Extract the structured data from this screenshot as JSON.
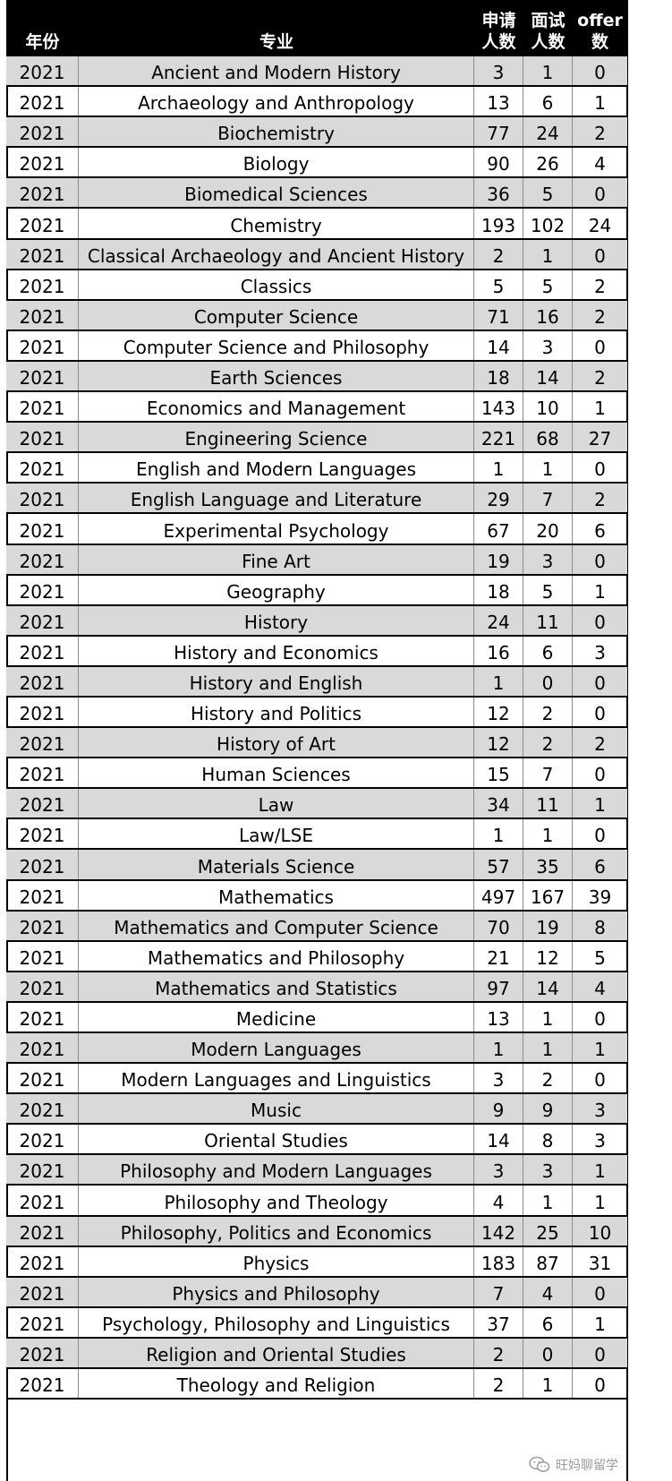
{
  "header": {
    "year": "年份",
    "major": "专业",
    "apply": [
      "申请",
      "人数"
    ],
    "interview": [
      "面试",
      "人数"
    ],
    "offer": [
      "offer",
      "数"
    ]
  },
  "rows": [
    {
      "year": "2021",
      "major": "Ancient and Modern History",
      "apply": "3",
      "interview": "1",
      "offer": "0"
    },
    {
      "year": "2021",
      "major": "Archaeology and Anthropology",
      "apply": "13",
      "interview": "6",
      "offer": "1"
    },
    {
      "year": "2021",
      "major": "Biochemistry",
      "apply": "77",
      "interview": "24",
      "offer": "2"
    },
    {
      "year": "2021",
      "major": "Biology",
      "apply": "90",
      "interview": "26",
      "offer": "4"
    },
    {
      "year": "2021",
      "major": "Biomedical Sciences",
      "apply": "36",
      "interview": "5",
      "offer": "0"
    },
    {
      "year": "2021",
      "major": "Chemistry",
      "apply": "193",
      "interview": "102",
      "offer": "24"
    },
    {
      "year": "2021",
      "major": "Classical Archaeology and Ancient History",
      "apply": "2",
      "interview": "1",
      "offer": "0"
    },
    {
      "year": "2021",
      "major": "Classics",
      "apply": "5",
      "interview": "5",
      "offer": "2"
    },
    {
      "year": "2021",
      "major": "Computer Science",
      "apply": "71",
      "interview": "16",
      "offer": "2"
    },
    {
      "year": "2021",
      "major": "Computer Science and Philosophy",
      "apply": "14",
      "interview": "3",
      "offer": "0"
    },
    {
      "year": "2021",
      "major": "Earth Sciences",
      "apply": "18",
      "interview": "14",
      "offer": "2"
    },
    {
      "year": "2021",
      "major": "Economics and Management",
      "apply": "143",
      "interview": "10",
      "offer": "1"
    },
    {
      "year": "2021",
      "major": "Engineering Science",
      "apply": "221",
      "interview": "68",
      "offer": "27"
    },
    {
      "year": "2021",
      "major": "English and Modern Languages",
      "apply": "1",
      "interview": "1",
      "offer": "0"
    },
    {
      "year": "2021",
      "major": "English Language and Literature",
      "apply": "29",
      "interview": "7",
      "offer": "2"
    },
    {
      "year": "2021",
      "major": "Experimental Psychology",
      "apply": "67",
      "interview": "20",
      "offer": "6"
    },
    {
      "year": "2021",
      "major": "Fine Art",
      "apply": "19",
      "interview": "3",
      "offer": "0"
    },
    {
      "year": "2021",
      "major": "Geography",
      "apply": "18",
      "interview": "5",
      "offer": "1"
    },
    {
      "year": "2021",
      "major": "History",
      "apply": "24",
      "interview": "11",
      "offer": "0"
    },
    {
      "year": "2021",
      "major": "History and Economics",
      "apply": "16",
      "interview": "6",
      "offer": "3"
    },
    {
      "year": "2021",
      "major": "History and English",
      "apply": "1",
      "interview": "0",
      "offer": "0"
    },
    {
      "year": "2021",
      "major": "History and Politics",
      "apply": "12",
      "interview": "2",
      "offer": "0"
    },
    {
      "year": "2021",
      "major": "History of Art",
      "apply": "12",
      "interview": "2",
      "offer": "2"
    },
    {
      "year": "2021",
      "major": "Human Sciences",
      "apply": "15",
      "interview": "7",
      "offer": "0"
    },
    {
      "year": "2021",
      "major": "Law",
      "apply": "34",
      "interview": "11",
      "offer": "1"
    },
    {
      "year": "2021",
      "major": "Law/LSE",
      "apply": "1",
      "interview": "1",
      "offer": "0"
    },
    {
      "year": "2021",
      "major": "Materials Science",
      "apply": "57",
      "interview": "35",
      "offer": "6"
    },
    {
      "year": "2021",
      "major": "Mathematics",
      "apply": "497",
      "interview": "167",
      "offer": "39"
    },
    {
      "year": "2021",
      "major": "Mathematics and Computer Science",
      "apply": "70",
      "interview": "19",
      "offer": "8"
    },
    {
      "year": "2021",
      "major": "Mathematics and Philosophy",
      "apply": "21",
      "interview": "12",
      "offer": "5"
    },
    {
      "year": "2021",
      "major": "Mathematics and Statistics",
      "apply": "97",
      "interview": "14",
      "offer": "4"
    },
    {
      "year": "2021",
      "major": "Medicine",
      "apply": "13",
      "interview": "1",
      "offer": "0"
    },
    {
      "year": "2021",
      "major": "Modern Languages",
      "apply": "1",
      "interview": "1",
      "offer": "1"
    },
    {
      "year": "2021",
      "major": "Modern Languages and Linguistics",
      "apply": "3",
      "interview": "2",
      "offer": "0"
    },
    {
      "year": "2021",
      "major": "Music",
      "apply": "9",
      "interview": "9",
      "offer": "3"
    },
    {
      "year": "2021",
      "major": "Oriental Studies",
      "apply": "14",
      "interview": "8",
      "offer": "3"
    },
    {
      "year": "2021",
      "major": "Philosophy and Modern Languages",
      "apply": "3",
      "interview": "3",
      "offer": "1"
    },
    {
      "year": "2021",
      "major": "Philosophy and Theology",
      "apply": "4",
      "interview": "1",
      "offer": "1"
    },
    {
      "year": "2021",
      "major": "Philosophy, Politics and Economics",
      "apply": "142",
      "interview": "25",
      "offer": "10"
    },
    {
      "year": "2021",
      "major": "Physics",
      "apply": "183",
      "interview": "87",
      "offer": "31"
    },
    {
      "year": "2021",
      "major": "Physics and Philosophy",
      "apply": "7",
      "interview": "4",
      "offer": "0"
    },
    {
      "year": "2021",
      "major": "Psychology, Philosophy and Linguistics",
      "apply": "37",
      "interview": "6",
      "offer": "1"
    },
    {
      "year": "2021",
      "major": "Religion and Oriental Studies",
      "apply": "2",
      "interview": "0",
      "offer": "0"
    },
    {
      "year": "2021",
      "major": "Theology and Religion",
      "apply": "2",
      "interview": "1",
      "offer": "0"
    }
  ],
  "watermark": {
    "text": "旺妈聊留学",
    "icon": "wechat-icon"
  }
}
